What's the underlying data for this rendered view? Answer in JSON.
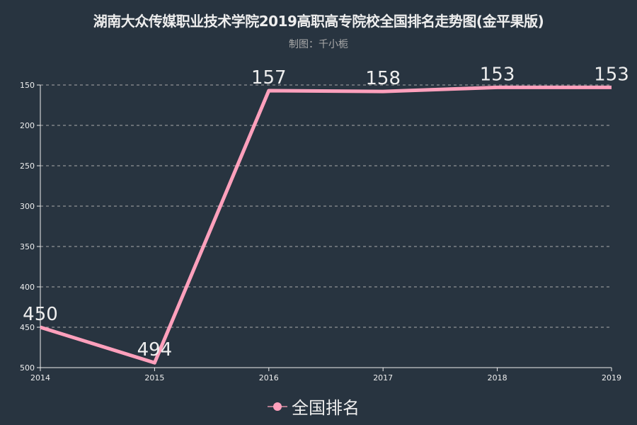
{
  "header": {
    "title": "湖南大众传媒职业技术学院2019高职高专院校全国排名走势图(金平果版)",
    "subtitle": "制图：千小栀"
  },
  "legend": {
    "label": "全国排名",
    "color": "#ffa0bc"
  },
  "colors": {
    "background": "#283440",
    "line": "#ffa0bc",
    "axis": "#eeeeee",
    "grid": "#aaaaaa"
  },
  "chart_data": {
    "type": "line",
    "title": "湖南大众传媒职业技术学院2019高职高专院校全国排名走势图(金平果版)",
    "subtitle": "制图：千小栀",
    "categories": [
      "2014",
      "2015",
      "2016",
      "2017",
      "2018",
      "2019"
    ],
    "series": [
      {
        "name": "全国排名",
        "values": [
          450,
          494,
          157,
          158,
          153,
          153
        ]
      }
    ],
    "xlabel": "",
    "ylabel": "",
    "ylim": [
      150,
      500
    ],
    "y_inverted": true,
    "yticks": [
      150,
      200,
      250,
      300,
      350,
      400,
      450,
      500
    ],
    "grid": "horizontal dashed",
    "legend_position": "bottom",
    "data_labels": true
  }
}
